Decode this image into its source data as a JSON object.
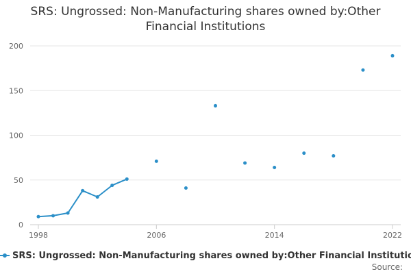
{
  "chart_data": {
    "type": "line",
    "title_line1": "SRS: Ungrossed: Non-Manufacturing shares owned by:Other",
    "title_line2": "Financial Institutions",
    "xlabel": "",
    "ylabel": "",
    "xlim": [
      1998,
      2022
    ],
    "ylim": [
      0,
      200
    ],
    "x_ticks": [
      1998,
      2006,
      2014,
      2022
    ],
    "y_ticks": [
      0,
      50,
      100,
      150,
      200
    ],
    "grid": true,
    "legend_position": "bottom",
    "series": [
      {
        "name": "SRS: Ungrossed: Non-Manufacturing shares owned by:Other Financial Institutions",
        "color": "#2b8fc8",
        "points": [
          {
            "x": 1998,
            "y": 9
          },
          {
            "x": 1999,
            "y": 10
          },
          {
            "x": 2000,
            "y": 13
          },
          {
            "x": 2001,
            "y": 38
          },
          {
            "x": 2002,
            "y": 31
          },
          {
            "x": 2003,
            "y": 44
          },
          {
            "x": 2004,
            "y": 51
          },
          {
            "x": 2006,
            "y": 71
          },
          {
            "x": 2008,
            "y": 41
          },
          {
            "x": 2010,
            "y": 133
          },
          {
            "x": 2012,
            "y": 69
          },
          {
            "x": 2014,
            "y": 64
          },
          {
            "x": 2016,
            "y": 80
          },
          {
            "x": 2018,
            "y": 77
          },
          {
            "x": 2020,
            "y": 173
          },
          {
            "x": 2022,
            "y": 189
          }
        ]
      }
    ]
  },
  "source_label": "Source:"
}
